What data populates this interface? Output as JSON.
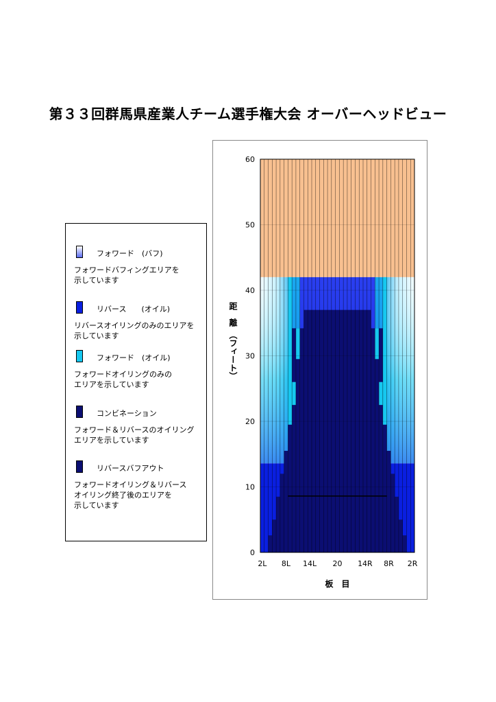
{
  "page_title": "第３３回群馬県産業人チーム選手権大会 オーバーヘッドビュー",
  "legend": [
    {
      "label": "フォワード　(バフ)",
      "desc": "フォワードバフィングエリアを\n示しています",
      "color": "gradient-white-blue"
    },
    {
      "label": "リバース　　(オイル)",
      "desc": "リバースオイリングのみのエリアを\n示しています",
      "color": "#0a1fe0"
    },
    {
      "label": "フォワード　(オイル)",
      "desc": "フォワードオイリングのみの\nエリアを示しています",
      "color": "#16c8f0"
    },
    {
      "label": "コンビネーション",
      "desc": "フォワード＆リバースのオイリング\nエリアを示しています",
      "color": "#0b0e72"
    },
    {
      "label": "リバースバフアウト",
      "desc": "フォワードオイリング＆リバース\nオイリング終了後のエリアを\n示しています",
      "color": "#0b0e72"
    }
  ],
  "chart_data": {
    "type": "heatmap",
    "title": "",
    "xlabel": "板　目",
    "ylabel": "距　離　（フィート）",
    "ylim": [
      0,
      60
    ],
    "yticks": [
      "0",
      "10",
      "20",
      "30",
      "40",
      "50",
      "60"
    ],
    "xticks": [
      "2L",
      "8L",
      "14L",
      "20",
      "14R",
      "8R",
      "2R"
    ],
    "boards": 39,
    "pattern_length_ft": 42,
    "regions": {
      "dry_lane_ft": [
        42,
        60
      ],
      "outer_reverse_oil_ft": [
        0,
        13.6
      ],
      "forward_buff_outside_ft": [
        13.6,
        42
      ],
      "combination_peak_ft": 37,
      "forward_oil_columns_boards": [
        "8L",
        "8R"
      ]
    },
    "combination_profile_ft": [
      {
        "board": "2L",
        "length": 0
      },
      {
        "board": "3L",
        "length": 2.6
      },
      {
        "board": "4L",
        "length": 5
      },
      {
        "board": "5L",
        "length": 8.5
      },
      {
        "board": "6L",
        "length": 12
      },
      {
        "board": "7L",
        "length": 15.5
      },
      {
        "board": "8L",
        "length": 19.5
      },
      {
        "board": "9L",
        "length": 34.2
      },
      {
        "board": "10L",
        "length": 34.2
      },
      {
        "board": "11L",
        "length": 34.2
      },
      {
        "board": "12L",
        "length": 37
      },
      {
        "board": "20",
        "length": 37
      },
      {
        "board": "12R",
        "length": 37
      },
      {
        "board": "11R",
        "length": 34.2
      },
      {
        "board": "10R",
        "length": 34.2
      },
      {
        "board": "9R",
        "length": 34.2
      },
      {
        "board": "8R",
        "length": 19.5
      },
      {
        "board": "7R",
        "length": 15.5
      },
      {
        "board": "6R",
        "length": 12
      },
      {
        "board": "5R",
        "length": 8.5
      },
      {
        "board": "4R",
        "length": 5
      },
      {
        "board": "3R",
        "length": 2.6
      },
      {
        "board": "2R",
        "length": 0
      }
    ],
    "colors": {
      "dry": "#f8c090",
      "reverse_oil": "#0a1fe0",
      "forward_oil": "#16c8f0",
      "combination": "#0b0e72",
      "buff_light": "#eefcff"
    }
  }
}
